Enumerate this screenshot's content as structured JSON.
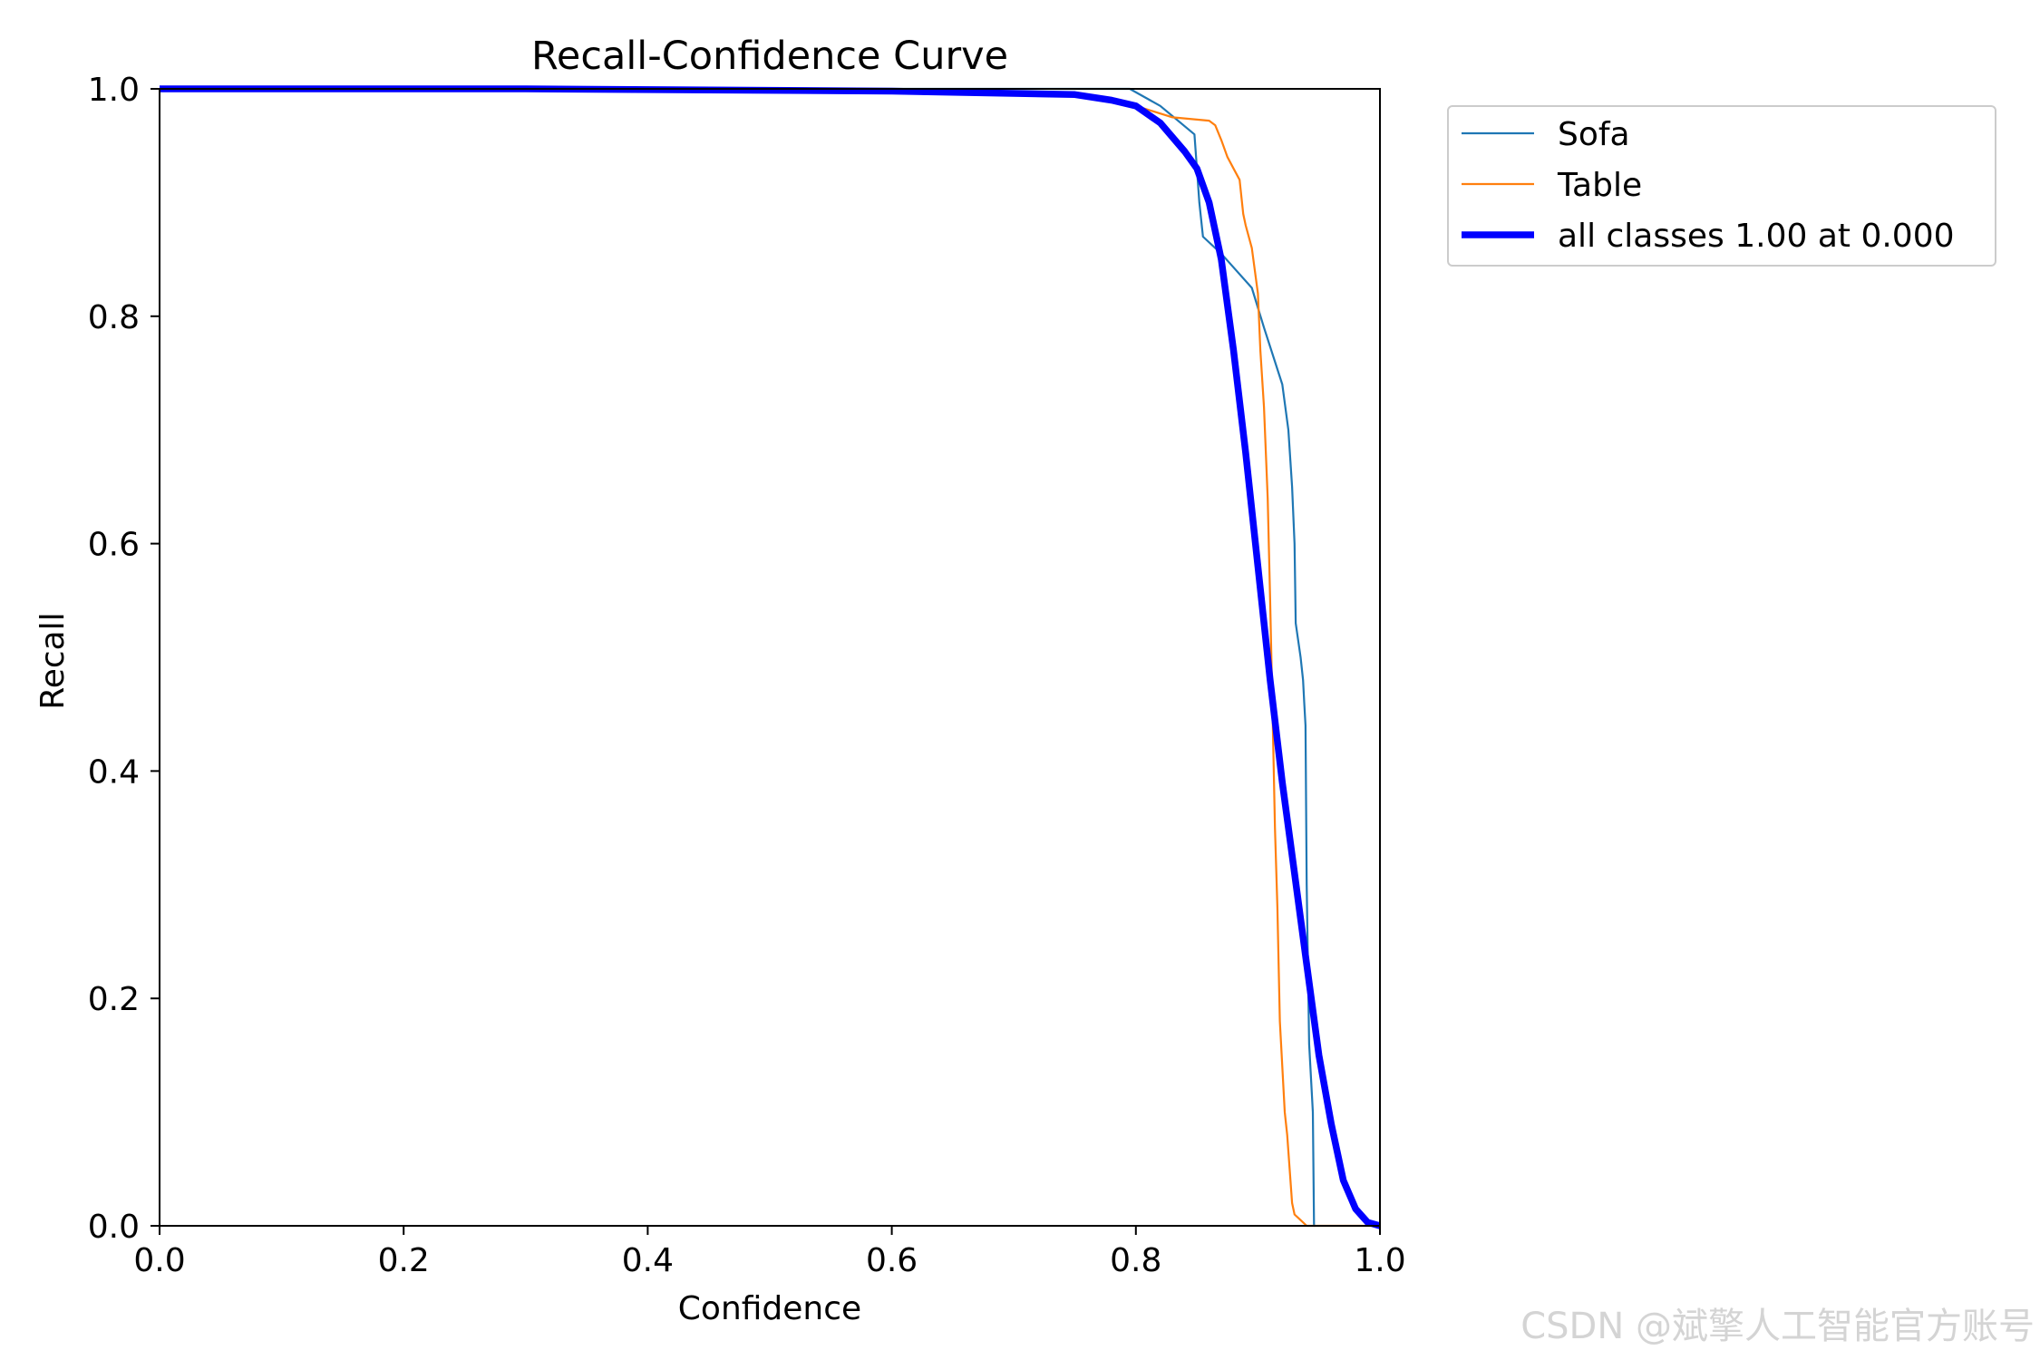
{
  "watermark": "CSDN @斌擎人工智能官方账号",
  "chart_data": {
    "type": "line",
    "title": "Recall-Confidence Curve",
    "xlabel": "Confidence",
    "ylabel": "Recall",
    "xlim": [
      0,
      1
    ],
    "ylim": [
      0,
      1
    ],
    "xticks": [
      "0.0",
      "0.2",
      "0.4",
      "0.6",
      "0.8",
      "1.0"
    ],
    "yticks": [
      "0.0",
      "0.2",
      "0.4",
      "0.6",
      "0.8",
      "1.0"
    ],
    "grid": false,
    "legend_position": "outside-top-right",
    "series": [
      {
        "name": "Sofa",
        "color": "#1f77b4",
        "x": [
          0.0,
          0.3,
          0.6,
          0.75,
          0.795,
          0.82,
          0.848,
          0.852,
          0.855,
          0.87,
          0.895,
          0.905,
          0.92,
          0.925,
          0.928,
          0.93,
          0.931,
          0.935,
          0.937,
          0.938,
          0.939,
          0.94,
          0.942,
          0.945,
          0.946,
          0.947
        ],
        "y": [
          1.0,
          1.0,
          1.0,
          1.0,
          1.0,
          0.985,
          0.96,
          0.9,
          0.87,
          0.855,
          0.825,
          0.79,
          0.74,
          0.7,
          0.65,
          0.6,
          0.53,
          0.5,
          0.48,
          0.46,
          0.44,
          0.3,
          0.16,
          0.1,
          0.0,
          0.0
        ],
        "linewidth": 2.2
      },
      {
        "name": "Table",
        "color": "#ff7f0e",
        "x": [
          0.0,
          0.3,
          0.6,
          0.75,
          0.8,
          0.83,
          0.86,
          0.865,
          0.87,
          0.875,
          0.88,
          0.885,
          0.888,
          0.89,
          0.895,
          0.9,
          0.902,
          0.905,
          0.908,
          0.91,
          0.912,
          0.914,
          0.916,
          0.918,
          0.92,
          0.922,
          0.924,
          0.926,
          0.928,
          0.93,
          0.935,
          0.94,
          1.0
        ],
        "y": [
          1.0,
          1.0,
          0.998,
          0.995,
          0.985,
          0.975,
          0.972,
          0.968,
          0.955,
          0.94,
          0.93,
          0.92,
          0.89,
          0.88,
          0.86,
          0.82,
          0.77,
          0.72,
          0.64,
          0.55,
          0.45,
          0.35,
          0.28,
          0.18,
          0.14,
          0.1,
          0.08,
          0.05,
          0.02,
          0.01,
          0.005,
          0.0,
          0.0
        ],
        "linewidth": 2.2
      },
      {
        "name": "all classes 1.00 at 0.000",
        "color": "#0000ff",
        "x": [
          0.0,
          0.3,
          0.6,
          0.75,
          0.78,
          0.8,
          0.82,
          0.84,
          0.85,
          0.86,
          0.87,
          0.88,
          0.89,
          0.9,
          0.91,
          0.92,
          0.93,
          0.94,
          0.95,
          0.96,
          0.97,
          0.98,
          0.99,
          1.0
        ],
        "y": [
          1.0,
          1.0,
          0.998,
          0.995,
          0.99,
          0.985,
          0.97,
          0.945,
          0.93,
          0.9,
          0.85,
          0.77,
          0.68,
          0.58,
          0.48,
          0.39,
          0.31,
          0.23,
          0.15,
          0.09,
          0.04,
          0.015,
          0.003,
          0.0
        ],
        "linewidth": 7.5
      }
    ]
  }
}
